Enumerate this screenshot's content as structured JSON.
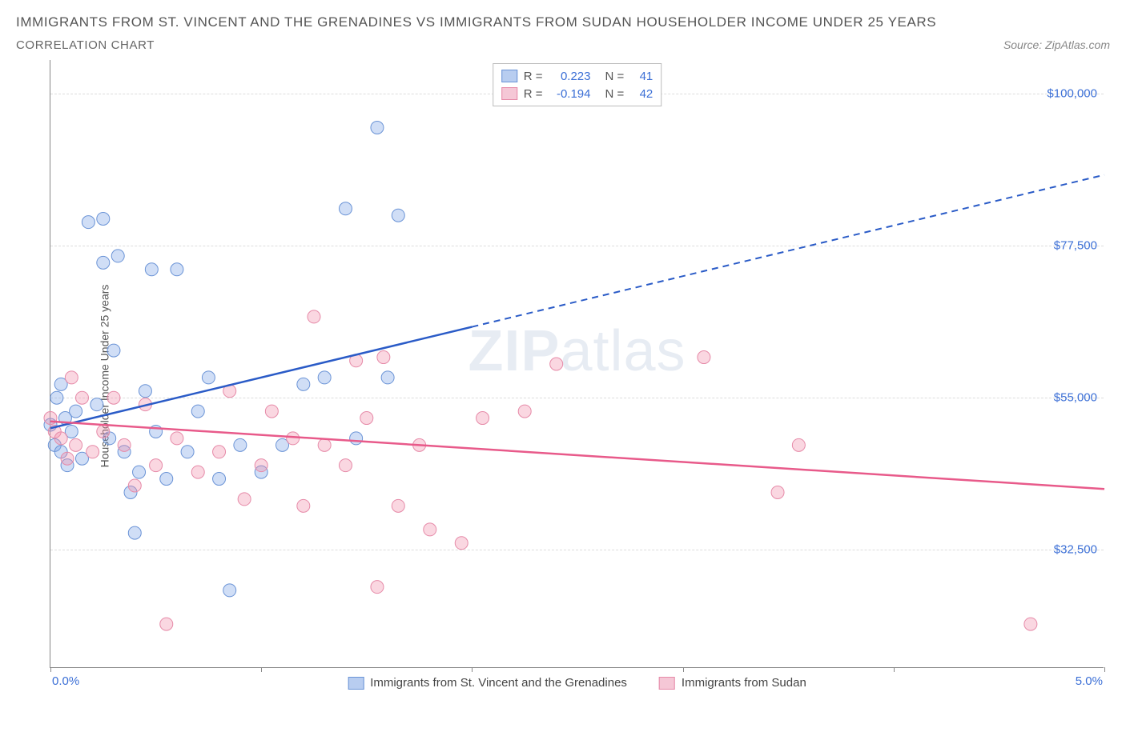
{
  "title": "IMMIGRANTS FROM ST. VINCENT AND THE GRENADINES VS IMMIGRANTS FROM SUDAN HOUSEHOLDER INCOME UNDER 25 YEARS",
  "subtitle": "CORRELATION CHART",
  "source": "Source: ZipAtlas.com",
  "watermark": {
    "bold": "ZIP",
    "light": "atlas"
  },
  "ylabel": "Householder Income Under 25 years",
  "chart": {
    "type": "scatter",
    "xlim": [
      0.0,
      5.0
    ],
    "ylim": [
      15000,
      105000
    ],
    "x_ticks": [
      0.0,
      1.0,
      2.0,
      3.0,
      4.0,
      5.0
    ],
    "x_tick_labels": {
      "0": "0.0%",
      "5": "5.0%"
    },
    "y_ticks": [
      32500,
      55000,
      77500,
      100000
    ],
    "y_tick_labels": [
      "$32,500",
      "$55,000",
      "$77,500",
      "$100,000"
    ],
    "grid_color": "#dddddd",
    "axis_color": "#888888",
    "tick_label_color": "#3b6fd6",
    "background_color": "#ffffff",
    "marker_radius": 8,
    "marker_opacity": 0.55,
    "series": [
      {
        "name": "Immigrants from St. Vincent and the Grenadines",
        "color_fill": "rgba(120,160,230,0.35)",
        "color_stroke": "#6a93d6",
        "swatch_fill": "#b8cdf0",
        "swatch_border": "#6a93d6",
        "r": "0.223",
        "n": "41",
        "trend": {
          "color": "#2a5bc7",
          "x1": 0.0,
          "y1": 50500,
          "x2": 2.0,
          "y2": 65500,
          "x3": 5.0,
          "y3": 88000
        },
        "points": [
          [
            0.0,
            51000
          ],
          [
            0.02,
            48000
          ],
          [
            0.03,
            55000
          ],
          [
            0.05,
            47000
          ],
          [
            0.05,
            57000
          ],
          [
            0.07,
            52000
          ],
          [
            0.08,
            45000
          ],
          [
            0.1,
            50000
          ],
          [
            0.12,
            53000
          ],
          [
            0.15,
            46000
          ],
          [
            0.18,
            81000
          ],
          [
            0.22,
            54000
          ],
          [
            0.25,
            75000
          ],
          [
            0.25,
            81500
          ],
          [
            0.28,
            49000
          ],
          [
            0.3,
            62000
          ],
          [
            0.32,
            76000
          ],
          [
            0.35,
            47000
          ],
          [
            0.38,
            41000
          ],
          [
            0.4,
            35000
          ],
          [
            0.42,
            44000
          ],
          [
            0.45,
            56000
          ],
          [
            0.48,
            74000
          ],
          [
            0.5,
            50000
          ],
          [
            0.55,
            43000
          ],
          [
            0.6,
            74000
          ],
          [
            0.65,
            47000
          ],
          [
            0.7,
            53000
          ],
          [
            0.75,
            58000
          ],
          [
            0.8,
            43000
          ],
          [
            0.85,
            26500
          ],
          [
            0.9,
            48000
          ],
          [
            1.0,
            44000
          ],
          [
            1.1,
            48000
          ],
          [
            1.2,
            57000
          ],
          [
            1.3,
            58000
          ],
          [
            1.4,
            83000
          ],
          [
            1.45,
            49000
          ],
          [
            1.55,
            95000
          ],
          [
            1.6,
            58000
          ],
          [
            1.65,
            82000
          ]
        ]
      },
      {
        "name": "Immigrants from Sudan",
        "color_fill": "rgba(240,140,170,0.35)",
        "color_stroke": "#e68aa8",
        "swatch_fill": "#f5c7d6",
        "swatch_border": "#e68aa8",
        "r": "-0.194",
        "n": "42",
        "trend": {
          "color": "#e85a8a",
          "x1": 0.0,
          "y1": 51500,
          "x2": 5.0,
          "y2": 41500
        },
        "points": [
          [
            0.0,
            52000
          ],
          [
            0.02,
            50000
          ],
          [
            0.05,
            49000
          ],
          [
            0.08,
            46000
          ],
          [
            0.1,
            58000
          ],
          [
            0.12,
            48000
          ],
          [
            0.15,
            55000
          ],
          [
            0.2,
            47000
          ],
          [
            0.25,
            50000
          ],
          [
            0.3,
            55000
          ],
          [
            0.35,
            48000
          ],
          [
            0.4,
            42000
          ],
          [
            0.45,
            54000
          ],
          [
            0.5,
            45000
          ],
          [
            0.55,
            21500
          ],
          [
            0.6,
            49000
          ],
          [
            0.7,
            44000
          ],
          [
            0.8,
            47000
          ],
          [
            0.85,
            56000
          ],
          [
            0.92,
            40000
          ],
          [
            1.0,
            45000
          ],
          [
            1.05,
            53000
          ],
          [
            1.15,
            49000
          ],
          [
            1.2,
            39000
          ],
          [
            1.25,
            67000
          ],
          [
            1.3,
            48000
          ],
          [
            1.4,
            45000
          ],
          [
            1.45,
            60500
          ],
          [
            1.5,
            52000
          ],
          [
            1.55,
            27000
          ],
          [
            1.58,
            61000
          ],
          [
            1.65,
            39000
          ],
          [
            1.75,
            48000
          ],
          [
            1.8,
            35500
          ],
          [
            1.95,
            33500
          ],
          [
            2.05,
            52000
          ],
          [
            2.25,
            53000
          ],
          [
            2.4,
            60000
          ],
          [
            3.1,
            61000
          ],
          [
            3.45,
            41000
          ],
          [
            3.55,
            48000
          ],
          [
            4.65,
            21500
          ]
        ]
      }
    ]
  },
  "bottom_legend": [
    {
      "label": "Immigrants from St. Vincent and the Grenadines",
      "series": 0
    },
    {
      "label": "Immigrants from Sudan",
      "series": 1
    }
  ]
}
